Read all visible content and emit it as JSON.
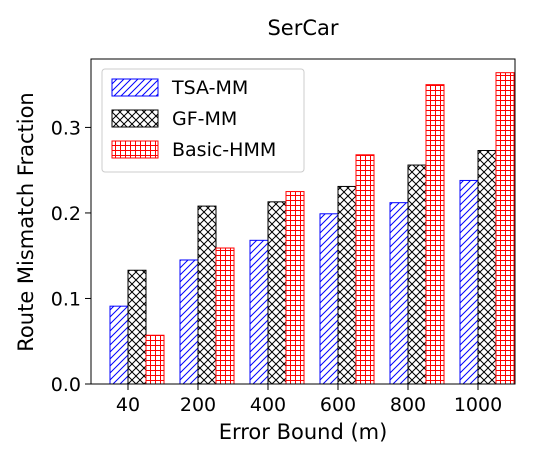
{
  "chart_data": {
    "type": "bar",
    "title": "SerCar",
    "xlabel": "Error Bound (m)",
    "ylabel": "Route Mismatch Fraction",
    "categories": [
      "40",
      "200",
      "400",
      "600",
      "800",
      "1000"
    ],
    "ylim": [
      0,
      0.38
    ],
    "yticks": [
      "0.0",
      "0.1",
      "0.2",
      "0.3"
    ],
    "legend_position": "top-left",
    "series": [
      {
        "name": "TSA-MM",
        "color": "#0000ff",
        "hatch": "diagonal",
        "values": [
          0.091,
          0.145,
          0.168,
          0.199,
          0.212,
          0.238
        ]
      },
      {
        "name": "GF-MM",
        "color": "#000000",
        "hatch": "crosshatch",
        "values": [
          0.133,
          0.208,
          0.213,
          0.231,
          0.256,
          0.273
        ]
      },
      {
        "name": "Basic-HMM",
        "color": "#ff0000",
        "hatch": "grid",
        "values": [
          0.057,
          0.159,
          0.225,
          0.268,
          0.35,
          0.364
        ]
      }
    ]
  }
}
